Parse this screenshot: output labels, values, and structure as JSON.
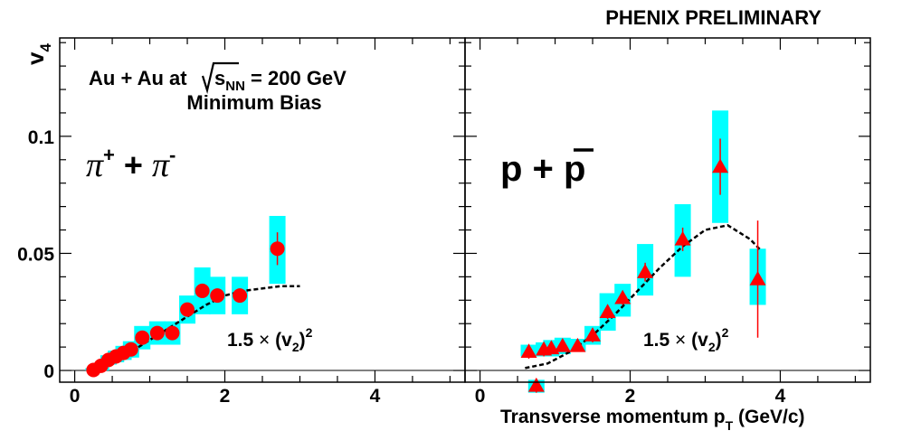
{
  "header": {
    "text": "PHENIX PRELIMINARY",
    "color": "#ff0000"
  },
  "colors": {
    "marker": "#ff0000",
    "systematic_box": "#00ffff",
    "axis": "#000000",
    "fit_line": "#000000"
  },
  "chart_data": [
    {
      "type": "scatter",
      "panel": "left",
      "title": "Au + Au at √s_NN = 200 GeV",
      "subtitle": "Minimum Bias",
      "particle_label": "π⁺ + π⁻",
      "ylabel": "v4",
      "xlabel": "",
      "xlim": [
        -0.2,
        5.2
      ],
      "ylim": [
        -0.005,
        0.142
      ],
      "x_ticks": [
        0,
        2,
        4
      ],
      "y_ticks": [
        0,
        0.05,
        0.1
      ],
      "y_tick_labels": [
        "0",
        "0.05",
        "0.1"
      ],
      "marker": "circle",
      "curve_label": "1.5 × (v2)²",
      "series": [
        {
          "x": [
            0.25,
            0.35,
            0.45,
            0.55,
            0.65,
            0.75,
            0.9,
            1.1,
            1.3,
            1.5,
            1.7,
            1.9,
            2.2,
            2.7
          ],
          "y": [
            0.0002,
            0.002,
            0.0045,
            0.006,
            0.0075,
            0.009,
            0.014,
            0.016,
            0.016,
            0.026,
            0.034,
            0.032,
            0.032,
            0.052
          ],
          "yerr": [
            0.0005,
            0.0005,
            0.0007,
            0.0008,
            0.001,
            0.0012,
            0.002,
            0.002,
            0.002,
            0.002,
            0.0025,
            0.003,
            0.003,
            0.007
          ],
          "sys_low": [
            0.0,
            0.0,
            0.0025,
            0.0035,
            0.0045,
            0.0055,
            0.009,
            0.011,
            0.011,
            0.02,
            0.024,
            0.024,
            0.024,
            0.037
          ],
          "sys_high": [
            0.001,
            0.003,
            0.0065,
            0.0085,
            0.0105,
            0.0125,
            0.019,
            0.021,
            0.021,
            0.032,
            0.044,
            0.04,
            0.04,
            0.066
          ]
        }
      ],
      "fit_curve": {
        "x": [
          0.25,
          0.5,
          0.75,
          1.0,
          1.25,
          1.5,
          1.75,
          2.0,
          2.25,
          2.5,
          2.75,
          3.0
        ],
        "y": [
          0.0,
          0.004,
          0.008,
          0.013,
          0.018,
          0.023,
          0.028,
          0.032,
          0.034,
          0.035,
          0.036,
          0.036
        ]
      }
    },
    {
      "type": "scatter",
      "panel": "right",
      "particle_label": "p + p̄",
      "xlabel": "Transverse momentum pT (GeV/c)",
      "ylabel": "",
      "xlim": [
        -0.2,
        5.2
      ],
      "ylim": [
        -0.005,
        0.142
      ],
      "x_ticks": [
        0,
        2,
        4
      ],
      "marker": "triangle",
      "curve_label": "1.5 × (v2)²",
      "series": [
        {
          "x": [
            0.65,
            0.75,
            0.85,
            0.95,
            1.1,
            1.3,
            1.5,
            1.7,
            1.9,
            2.2,
            2.7,
            3.2,
            3.7
          ],
          "y": [
            0.008,
            -0.0065,
            0.009,
            0.0095,
            0.0105,
            0.0105,
            0.015,
            0.025,
            0.031,
            0.042,
            0.056,
            0.087,
            0.039
          ],
          "yerr": [
            0.003,
            0.003,
            0.003,
            0.002,
            0.002,
            0.002,
            0.003,
            0.003,
            0.003,
            0.004,
            0.005,
            0.012,
            0.025
          ],
          "sys_low": [
            0.006,
            -0.004,
            0.006,
            0.006,
            0.007,
            0.008,
            0.011,
            0.017,
            0.023,
            0.032,
            0.04,
            0.063,
            0.028
          ],
          "sys_high": [
            0.011,
            -0.0095,
            0.012,
            0.013,
            0.014,
            0.0135,
            0.019,
            0.033,
            0.037,
            0.054,
            0.071,
            0.111,
            0.052
          ]
        }
      ],
      "fit_curve": {
        "x": [
          0.6,
          0.9,
          1.2,
          1.5,
          1.8,
          2.1,
          2.4,
          2.7,
          3.0,
          3.3,
          3.6,
          3.75
        ],
        "y": [
          0.001,
          0.003,
          0.008,
          0.015,
          0.024,
          0.034,
          0.044,
          0.053,
          0.06,
          0.062,
          0.056,
          0.051
        ]
      }
    }
  ]
}
